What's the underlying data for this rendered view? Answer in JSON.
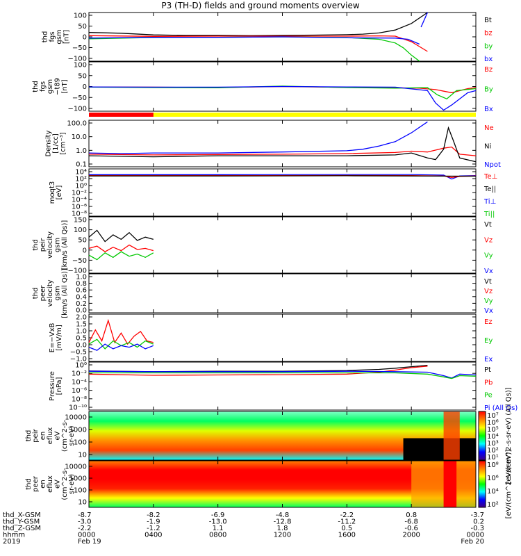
{
  "title": "P3 (TH-D) fields and ground moments overview",
  "colors": {
    "black": "#000000",
    "red": "#ff0000",
    "green": "#00c800",
    "blue": "#0000ff",
    "yellow": "#ffff00"
  },
  "chart_data": {
    "type": "line",
    "xaxis": {
      "hhmm": [
        "0000",
        "0400",
        "0800",
        "1200",
        "1600",
        "2000",
        "0000"
      ],
      "hours": [
        0,
        4,
        8,
        12,
        16,
        20,
        24
      ],
      "range_hours": [
        0,
        24
      ],
      "thd_X_GSM": [
        "-8.7",
        "-8.2",
        "-6.9",
        "-4.8",
        "-2.2",
        "0.8",
        "-3.7"
      ],
      "thd_Y_GSM": [
        "-3.0",
        "-1.9",
        "-13.0",
        "-12.8",
        "-11.2",
        "-6.8",
        "0.2"
      ],
      "thd_Z_GSM": [
        "-2.2",
        "-1.2",
        "1.1",
        "1.8",
        "0.5",
        "-0.6",
        "-0.3"
      ],
      "row_labels": [
        "thd_X-GSM",
        "thd_Y-GSM",
        "thd_Z-GSM",
        "hhmm",
        "2019"
      ],
      "dates": [
        "Feb 19",
        "Feb 20"
      ]
    },
    "panels": [
      {
        "id": "fgs",
        "ylabel": "thd\nfgs\ngsm\n[nT]",
        "ylim": [
          -100,
          100
        ],
        "yticks": [
          "100",
          "50",
          "0",
          "−50",
          "−100"
        ],
        "legend": [
          {
            "name": "Bt",
            "color": "black"
          },
          {
            "name": "bz",
            "color": "red"
          },
          {
            "name": "by",
            "color": "green"
          },
          {
            "name": "bx",
            "color": "blue"
          }
        ],
        "series": [
          {
            "name": "Bt",
            "color": "black",
            "x": [
              0,
              2,
              4,
              6,
              8,
              10,
              12,
              14,
              16,
              17,
              18,
              19,
              20,
              21
            ],
            "y": [
              18,
              15,
              8,
              6,
              6,
              5,
              6,
              7,
              9,
              11,
              16,
              28,
              55,
              100
            ]
          },
          {
            "name": "bz",
            "color": "red",
            "x": [
              0,
              4,
              8,
              12,
              16,
              18,
              19,
              20,
              21
            ],
            "y": [
              5,
              2,
              3,
              3,
              3,
              4,
              3,
              -20,
              -60
            ]
          },
          {
            "name": "by",
            "color": "green",
            "x": [
              0,
              4,
              8,
              12,
              16,
              18,
              19,
              19.5,
              20,
              20.5
            ],
            "y": [
              -8,
              -3,
              -2,
              0,
              -3,
              -10,
              -25,
              -45,
              -75,
              -100
            ]
          },
          {
            "name": "bx",
            "color": "blue",
            "x": [
              0,
              4,
              8,
              12,
              16,
              19,
              19.8,
              20.5
            ],
            "y": [
              -5,
              -2,
              -2,
              0,
              -4,
              -5,
              -10,
              -30
            ]
          },
          {
            "name": "bx",
            "color": "blue",
            "x": [
              20.6,
              21
            ],
            "y": [
              40,
              100
            ]
          }
        ]
      },
      {
        "id": "fgs_t89",
        "ylabel": "thd\nfgs\ngsm\n−t89\n[nT]",
        "ylim": [
          -120,
          120
        ],
        "yticks": [
          "100",
          "50",
          "0",
          "−50",
          "−100"
        ],
        "legend": [
          {
            "name": "Bz",
            "color": "red"
          },
          {
            "name": "By",
            "color": "green"
          },
          {
            "name": "Bx",
            "color": "blue"
          }
        ],
        "series": [
          {
            "name": "Bz",
            "color": "red",
            "x": [
              0,
              4,
              8,
              12,
              16,
              19,
              20.5,
              21.5,
              22.5,
              23.5,
              24
            ],
            "y": [
              -2,
              -3,
              -5,
              0,
              -4,
              -6,
              -8,
              -15,
              -30,
              -10,
              -5
            ]
          },
          {
            "name": "By",
            "color": "green",
            "x": [
              0,
              4,
              8,
              12,
              16,
              19,
              21,
              21.6,
              22.2,
              22.8,
              24
            ],
            "y": [
              -3,
              -5,
              -6,
              2,
              -5,
              -8,
              -5,
              -40,
              -60,
              -20,
              -10
            ]
          },
          {
            "name": "Bx",
            "color": "blue",
            "x": [
              0,
              4,
              8,
              12,
              16,
              19,
              21,
              21.5,
              22,
              22.5,
              23.5,
              24
            ],
            "y": [
              -2,
              -3,
              -3,
              0,
              -2,
              -3,
              -20,
              -80,
              -115,
              -90,
              -30,
              -20
            ]
          }
        ]
      },
      {
        "id": "density",
        "ylabel": "Density\n[1/cc]\n[cm⁻³]",
        "log": true,
        "ylim": [
          0.04,
          200
        ],
        "yticks": [
          "100.0",
          "10.0",
          "1.0",
          "0.1"
        ],
        "legend": [
          {
            "name": "Ne",
            "color": "red"
          },
          {
            "name": "Ni",
            "color": "black"
          },
          {
            "name": "Npot",
            "color": "blue"
          }
        ],
        "series": [
          {
            "name": "Npot",
            "color": "blue",
            "x": [
              0,
              2,
              4,
              8,
              12,
              16,
              17,
              18,
              19,
              20,
              21
            ],
            "y": [
              0.5,
              0.45,
              0.5,
              0.5,
              0.6,
              0.75,
              1,
              1.8,
              4,
              20,
              150
            ]
          },
          {
            "name": "Ne",
            "color": "red",
            "x": [
              0,
              4,
              8,
              12,
              16,
              19,
              20,
              21,
              22,
              22.5,
              23,
              24
            ],
            "y": [
              0.4,
              0.35,
              0.38,
              0.4,
              0.45,
              0.55,
              0.7,
              0.6,
              1.2,
              1.5,
              0.4,
              0.3
            ]
          },
          {
            "name": "Ni",
            "color": "black",
            "x": [
              0,
              4,
              8,
              12,
              16,
              19,
              20,
              21,
              21.5,
              22,
              22.3,
              22.6,
              23,
              24
            ],
            "y": [
              0.3,
              0.25,
              0.3,
              0.3,
              0.3,
              0.35,
              0.5,
              0.2,
              0.15,
              1,
              50,
              5,
              0.2,
              0.1
            ]
          }
        ]
      },
      {
        "id": "temp",
        "ylabel": "moqt3\n[eV]",
        "log": true,
        "ylim": [
          1e-09,
          100000.0
        ],
        "yticks": [
          "10⁴",
          "10²",
          "10⁰",
          "10⁻²",
          "10⁻⁴",
          "10⁻⁶",
          "10⁻⁸"
        ],
        "legend": [
          {
            "name": "Te⊥",
            "color": "red"
          },
          {
            "name": "Te||",
            "color": "black"
          },
          {
            "name": "Ti⊥",
            "color": "blue"
          },
          {
            "name": "Ti||",
            "color": "green"
          }
        ],
        "series": [
          {
            "name": "Ti⊥",
            "color": "blue",
            "x": [
              0,
              8,
              16,
              20,
              22,
              22.5,
              23,
              24
            ],
            "y": [
              2000,
              2000,
              2200,
              2200,
              1500,
              100,
              800,
              1000
            ]
          },
          {
            "name": "Te⊥",
            "color": "red",
            "x": [
              0,
              8,
              16,
              20,
              22,
              22.5,
              23,
              24
            ],
            "y": [
              1000,
              1000,
              1100,
              1000,
              800,
              300,
              600,
              800
            ]
          },
          {
            "name": "Te||",
            "color": "black",
            "x": [
              0,
              8,
              16,
              20,
              24
            ],
            "y": [
              800,
              800,
              900,
              800,
              700
            ]
          }
        ]
      },
      {
        "id": "peir",
        "ylabel": "thd\npeir\nvelocity\ngsm\n[km/s (All Qs)]",
        "ylim": [
          -100,
          150
        ],
        "yticks": [
          "150",
          "100",
          "50",
          "0",
          "−50",
          "−100"
        ],
        "legend": [
          {
            "name": "Vt",
            "color": "black"
          },
          {
            "name": "Vz",
            "color": "red"
          },
          {
            "name": "Vy",
            "color": "green"
          },
          {
            "name": "Vx",
            "color": "blue"
          }
        ],
        "series": [
          {
            "name": "Vt",
            "color": "black",
            "x": [
              0,
              0.5,
              1,
              1.5,
              2,
              2.5,
              3,
              3.5,
              4
            ],
            "y": [
              60,
              90,
              40,
              70,
              50,
              80,
              45,
              60,
              50
            ]
          },
          {
            "name": "Vz",
            "color": "red",
            "x": [
              0,
              0.5,
              1,
              1.5,
              2,
              2.5,
              3,
              3.5,
              4
            ],
            "y": [
              10,
              20,
              -5,
              15,
              0,
              25,
              5,
              10,
              0
            ]
          },
          {
            "name": "Vy",
            "color": "green",
            "x": [
              0,
              0.5,
              1,
              1.5,
              2,
              2.5,
              3,
              3.5,
              4
            ],
            "y": [
              -20,
              -40,
              -10,
              -30,
              -5,
              -25,
              -15,
              -30,
              -10
            ]
          }
        ]
      },
      {
        "id": "peer",
        "ylabel": "thd\npeer\nvelocity\ngsm\n[km/s (All Qs)]",
        "ylim": [
          0,
          1
        ],
        "yticks": [
          "1.0",
          "0.8",
          "0.6",
          "0.4",
          "0.2",
          "0.0"
        ],
        "legend": [
          {
            "name": "Vt",
            "color": "black"
          },
          {
            "name": "Vz",
            "color": "red"
          },
          {
            "name": "Vy",
            "color": "green"
          },
          {
            "name": "Vx",
            "color": "blue"
          }
        ],
        "series": []
      },
      {
        "id": "efield",
        "ylabel": "E=−VxB\n[mV/m]",
        "ylim": [
          -1,
          2
        ],
        "yticks": [
          "2.0",
          "1.5",
          "1.0",
          "0.5",
          "0.0",
          "−0.5",
          "−1.0"
        ],
        "legend": [
          {
            "name": "Ez",
            "color": "red"
          },
          {
            "name": "Ey",
            "color": "green"
          },
          {
            "name": "Ex",
            "color": "blue"
          }
        ],
        "series": [
          {
            "name": "Ez",
            "color": "red",
            "x": [
              0,
              0.4,
              0.8,
              1.2,
              1.6,
              2,
              2.4,
              2.8,
              3.2,
              3.6,
              4
            ],
            "y": [
              0.2,
              1.0,
              0.3,
              1.6,
              0.2,
              0.8,
              0.1,
              0.6,
              0.9,
              0.3,
              0.2
            ]
          },
          {
            "name": "Ey",
            "color": "green",
            "x": [
              0,
              0.5,
              1,
              1.5,
              2,
              2.5,
              3,
              3.5,
              4
            ],
            "y": [
              0.1,
              0.4,
              -0.2,
              0.3,
              0,
              0.2,
              -0.1,
              0.3,
              0.1
            ]
          },
          {
            "name": "Ex",
            "color": "blue",
            "x": [
              0,
              0.5,
              1,
              1.5,
              2,
              2.5,
              3,
              3.5,
              4
            ],
            "y": [
              -0.1,
              -0.3,
              0.1,
              -0.2,
              0,
              -0.1,
              0.1,
              -0.2,
              0
            ]
          }
        ]
      },
      {
        "id": "pressure",
        "ylabel": "Pressure\n[nPa]",
        "log": true,
        "ylim": [
          1e-11,
          10.0
        ],
        "yticks": [
          "10⁰",
          "10⁻²",
          "10⁻⁴",
          "10⁻⁶",
          "10⁻⁸",
          "10⁻¹⁰"
        ],
        "legend": [
          {
            "name": "Pt",
            "color": "black"
          },
          {
            "name": "Pb",
            "color": "red"
          },
          {
            "name": "Pe",
            "color": "green"
          },
          {
            "name": "Pi (All Qs)",
            "color": "blue"
          }
        ],
        "series": [
          {
            "name": "Pt",
            "color": "black",
            "x": [
              0,
              4,
              8,
              12,
              16,
              18,
              19,
              20,
              21
            ],
            "y": [
              0.06,
              0.04,
              0.05,
              0.05,
              0.08,
              0.15,
              0.3,
              0.7,
              1.5
            ]
          },
          {
            "name": "Pb",
            "color": "red",
            "x": [
              0,
              4,
              8,
              12,
              16,
              18,
              19,
              20,
              21
            ],
            "y": [
              0.01,
              0.005,
              0.006,
              0.007,
              0.01,
              0.03,
              0.1,
              0.4,
              1
            ]
          },
          {
            "name": "Pi",
            "color": "blue",
            "x": [
              0,
              4,
              8,
              12,
              16,
              19,
              21,
              22,
              22.5,
              23,
              24
            ],
            "y": [
              0.05,
              0.04,
              0.04,
              0.04,
              0.05,
              0.04,
              0.03,
              0.004,
              0.001,
              0.01,
              0.006
            ]
          },
          {
            "name": "Pe",
            "color": "green",
            "x": [
              0,
              4,
              8,
              12,
              16,
              19,
              21,
              22,
              22.5,
              23,
              24
            ],
            "y": [
              0.02,
              0.02,
              0.02,
              0.02,
              0.02,
              0.02,
              0.01,
              0.002,
              0.0008,
              0.004,
              0.003
            ]
          }
        ]
      }
    ],
    "spectrograms": [
      {
        "id": "peir_en",
        "ylabel": "thd\npeir\nen\neflux\neV\n(cm^2-s-\nsr-eV)",
        "yticks": [
          "10000",
          "1000",
          "100",
          "10"
        ],
        "colorbar": {
          "label": "[eV/(cm^2-s-sr-eV) (All Qs)]",
          "ticks": [
            "10⁷",
            "10⁶",
            "10⁵",
            "10⁴",
            "10³",
            "10²",
            "10¹"
          ]
        }
      },
      {
        "id": "peer_en",
        "ylabel": "thd\npeer\nen\neflux\neV\n(cm^2-s-\nsr-eV)",
        "yticks": [
          "10000",
          "1000",
          "100",
          "10"
        ],
        "colorbar": {
          "label": "[eV/(cm^2-s-sr-eV)]",
          "ticks": [
            "10⁸",
            "10⁶",
            "10⁴",
            "10²"
          ]
        }
      }
    ]
  }
}
